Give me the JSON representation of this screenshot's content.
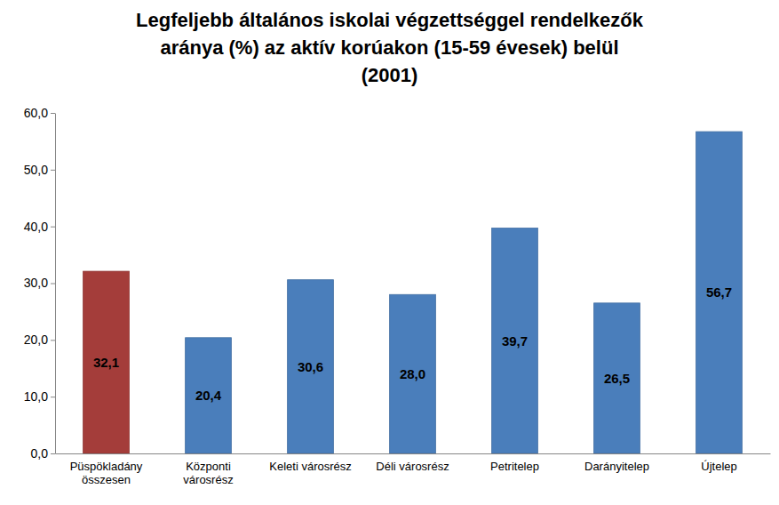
{
  "chart_data": {
    "type": "bar",
    "title": "Legfeljebb általános iskolai végzettséggel rendelkezők\naránya (%) az aktív korúakon (15-59 évesek) belül\n(2001)",
    "categories": [
      "Püspökladány összesen",
      "Központi városrész",
      "Keleti városrész",
      "Déli városrész",
      "Petritelep",
      "Darányitelep",
      "Újtelep"
    ],
    "values": [
      32.1,
      20.4,
      30.6,
      28.0,
      39.7,
      26.5,
      56.7
    ],
    "value_labels": [
      "32,1",
      "20,4",
      "30,6",
      "28,0",
      "39,7",
      "26,5",
      "56,7"
    ],
    "colors": [
      "#a43d3a",
      "#4a7ebb",
      "#4a7ebb",
      "#4a7ebb",
      "#4a7ebb",
      "#4a7ebb",
      "#4a7ebb"
    ],
    "data_labels": true,
    "grid": false,
    "ylim": [
      0,
      60
    ],
    "yticks": [
      {
        "value": 0,
        "label": "0,0"
      },
      {
        "value": 10,
        "label": "10,0"
      },
      {
        "value": 20,
        "label": "20,0"
      },
      {
        "value": 30,
        "label": "30,0"
      },
      {
        "value": 40,
        "label": "40,0"
      },
      {
        "value": 50,
        "label": "50,0"
      },
      {
        "value": 60,
        "label": "60,0"
      }
    ]
  }
}
